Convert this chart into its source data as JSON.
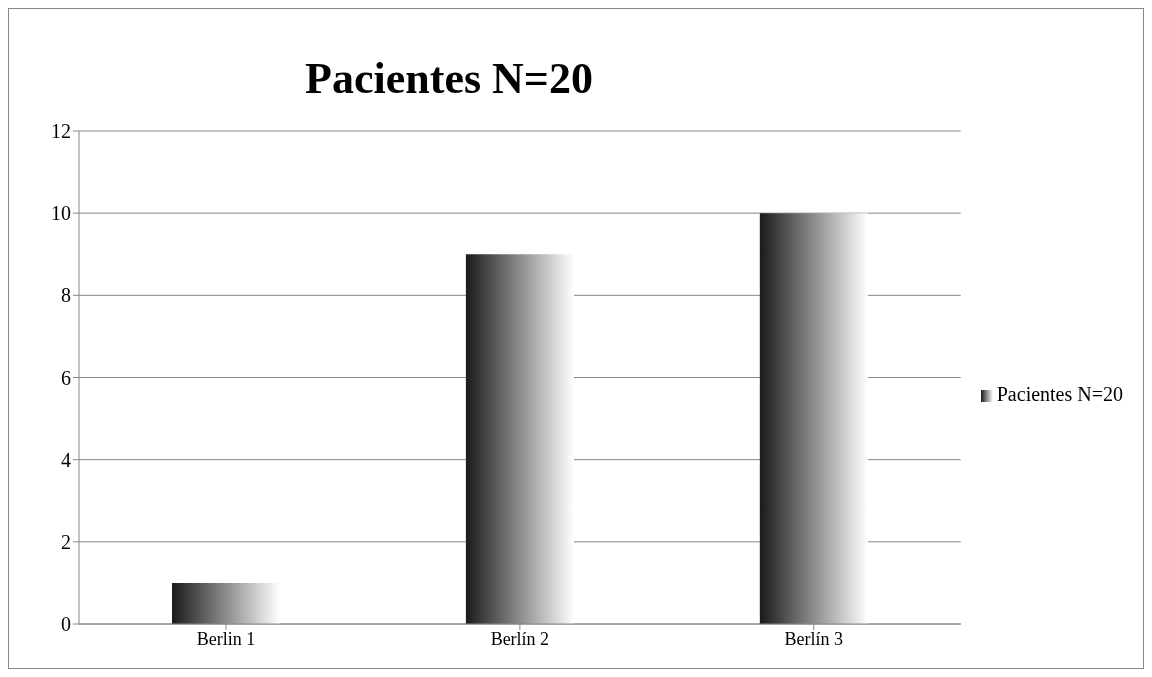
{
  "chart_data": {
    "type": "bar",
    "title": "Pacientes N=20",
    "categories": [
      "Berlin 1",
      "Berlín 2",
      "Berlín 3"
    ],
    "series": [
      {
        "name": "Pacientes N=20",
        "color": "#1a1a1a",
        "values": [
          1,
          9,
          10
        ]
      }
    ],
    "ylim": [
      0,
      12
    ],
    "yticks": [
      0,
      2,
      4,
      6,
      8,
      10,
      12
    ],
    "grid": "y",
    "legend": "right"
  }
}
